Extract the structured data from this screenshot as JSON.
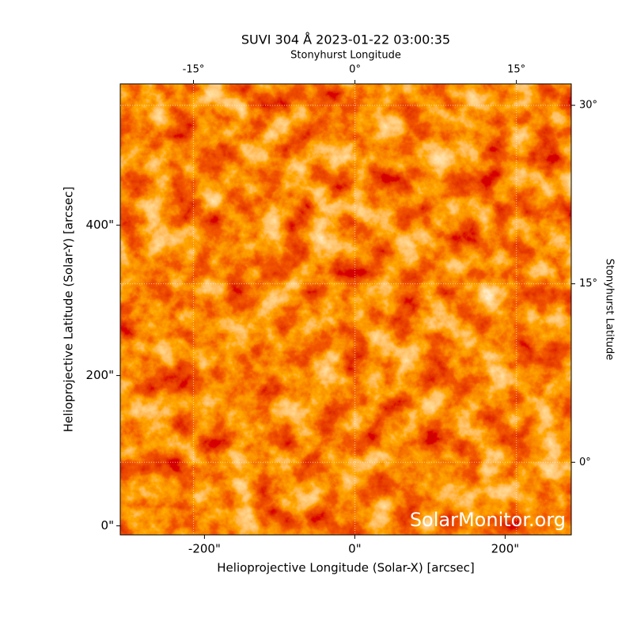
{
  "chart_data": {
    "type": "image",
    "title": "SUVI 304 Å 2023-01-22 03:00:35",
    "xlabel": "Helioprojective Longitude (Solar-X) [arcsec]",
    "ylabel": "Helioprojective Latitude (Solar-Y) [arcsec]",
    "x2label": "Stonyhurst Longitude",
    "y2label": "Stonyhurst Latitude",
    "watermark": "SolarMonitor.org",
    "xlim": [
      -312,
      288
    ],
    "ylim": [
      -12,
      588
    ],
    "xticks": [
      {
        "value": -200,
        "label": "-200\""
      },
      {
        "value": 0,
        "label": "0\""
      },
      {
        "value": 200,
        "label": "200\""
      }
    ],
    "yticks": [
      {
        "value": 0,
        "label": "0\""
      },
      {
        "value": 200,
        "label": "200\""
      },
      {
        "value": 400,
        "label": "400\""
      }
    ],
    "x2lim": [
      -21.8,
      20.1
    ],
    "y2lim": [
      -6.1,
      31.8
    ],
    "x2ticks": [
      {
        "value": -15,
        "label": "-15°"
      },
      {
        "value": 0,
        "label": "0°"
      },
      {
        "value": 15,
        "label": "15°"
      }
    ],
    "y2ticks": [
      {
        "value": 0,
        "label": "0°"
      },
      {
        "value": 15,
        "label": "15°"
      },
      {
        "value": 30,
        "label": "30°"
      }
    ],
    "grid": true
  }
}
